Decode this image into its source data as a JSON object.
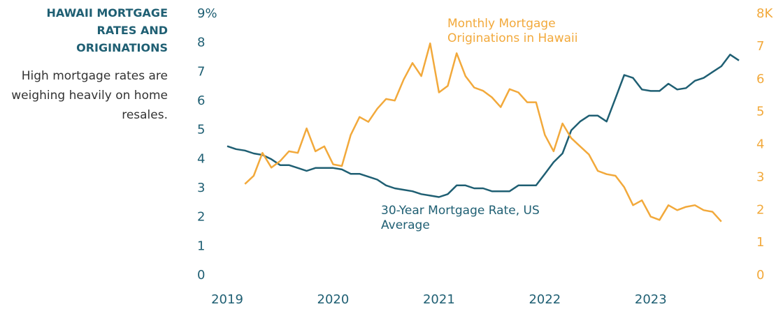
{
  "chart_data": {
    "type": "line",
    "title": "HAWAII MORTGAGE RATES AND ORIGINATIONS",
    "subtitle": "High mortgage rates are weighing heavily on home resales.",
    "annotations": [
      "Monthly Mortgage Originations in Hawaii",
      "30-Year Mortgage Rate, US Average"
    ],
    "x": [
      2019,
      2019.083,
      2019.167,
      2019.25,
      2019.333,
      2019.417,
      2019.5,
      2019.583,
      2019.667,
      2019.75,
      2019.833,
      2019.917,
      2020,
      2020.083,
      2020.167,
      2020.25,
      2020.333,
      2020.417,
      2020.5,
      2020.583,
      2020.667,
      2020.75,
      2020.833,
      2020.917,
      2021,
      2021.083,
      2021.167,
      2021.25,
      2021.333,
      2021.417,
      2021.5,
      2021.583,
      2021.667,
      2021.75,
      2021.833,
      2021.917,
      2022,
      2022.083,
      2022.167,
      2022.25,
      2022.333,
      2022.417,
      2022.5,
      2022.583,
      2022.667,
      2022.75,
      2022.833,
      2022.917,
      2023,
      2023.083,
      2023.167,
      2023.25,
      2023.333,
      2023.417,
      2023.5,
      2023.583,
      2023.667,
      2023.75,
      2023.833
    ],
    "series": [
      {
        "name": "30-Year Mortgage Rate, US Average",
        "color": "#1f5f73",
        "axis": "y",
        "values": [
          4.45,
          4.35,
          4.3,
          4.2,
          4.15,
          4.0,
          3.8,
          3.8,
          3.7,
          3.6,
          3.7,
          3.7,
          3.7,
          3.65,
          3.5,
          3.5,
          3.4,
          3.3,
          3.1,
          3.0,
          2.95,
          2.9,
          2.8,
          2.75,
          2.7,
          2.8,
          3.1,
          3.1,
          3.0,
          3.0,
          2.9,
          2.9,
          2.9,
          3.1,
          3.1,
          3.1,
          3.5,
          3.9,
          4.2,
          5.0,
          5.3,
          5.5,
          5.5,
          5.3,
          6.1,
          6.9,
          6.8,
          6.4,
          6.35,
          6.35,
          6.6,
          6.4,
          6.45,
          6.7,
          6.8,
          7.0,
          7.2,
          7.6,
          7.4
        ]
      },
      {
        "name": "Monthly Mortgage Originations in Hawaii",
        "color": "#f2a93b",
        "axis": "y2",
        "values": [
          null,
          null,
          2.8,
          3.05,
          3.75,
          3.3,
          3.5,
          3.8,
          3.75,
          4.5,
          3.8,
          3.95,
          3.4,
          3.35,
          4.3,
          4.85,
          4.7,
          5.1,
          5.4,
          5.35,
          6.0,
          6.5,
          6.1,
          7.1,
          5.6,
          5.8,
          6.8,
          6.1,
          5.75,
          5.65,
          5.45,
          5.15,
          5.7,
          5.6,
          5.3,
          5.3,
          4.3,
          3.8,
          4.65,
          4.2,
          3.95,
          3.7,
          3.2,
          3.1,
          3.05,
          2.7,
          2.15,
          2.3,
          1.8,
          1.7,
          2.15,
          2.0,
          2.1,
          2.15,
          2.0,
          1.95,
          1.65,
          null,
          null
        ]
      }
    ],
    "xlim": [
      2019,
      2023.82
    ],
    "xticks": [
      2019,
      2020,
      2021,
      2022,
      2023
    ],
    "ylim": [
      0,
      9
    ],
    "yticks": [
      0,
      1,
      2,
      3,
      4,
      5,
      6,
      7,
      8,
      {
        "value": 9,
        "label": "9%"
      }
    ],
    "y2lim": [
      0,
      8
    ],
    "y2ticks": [
      0,
      1,
      2,
      3,
      4,
      5,
      6,
      7,
      {
        "value": 8,
        "label": "8K"
      }
    ],
    "grid": false
  }
}
